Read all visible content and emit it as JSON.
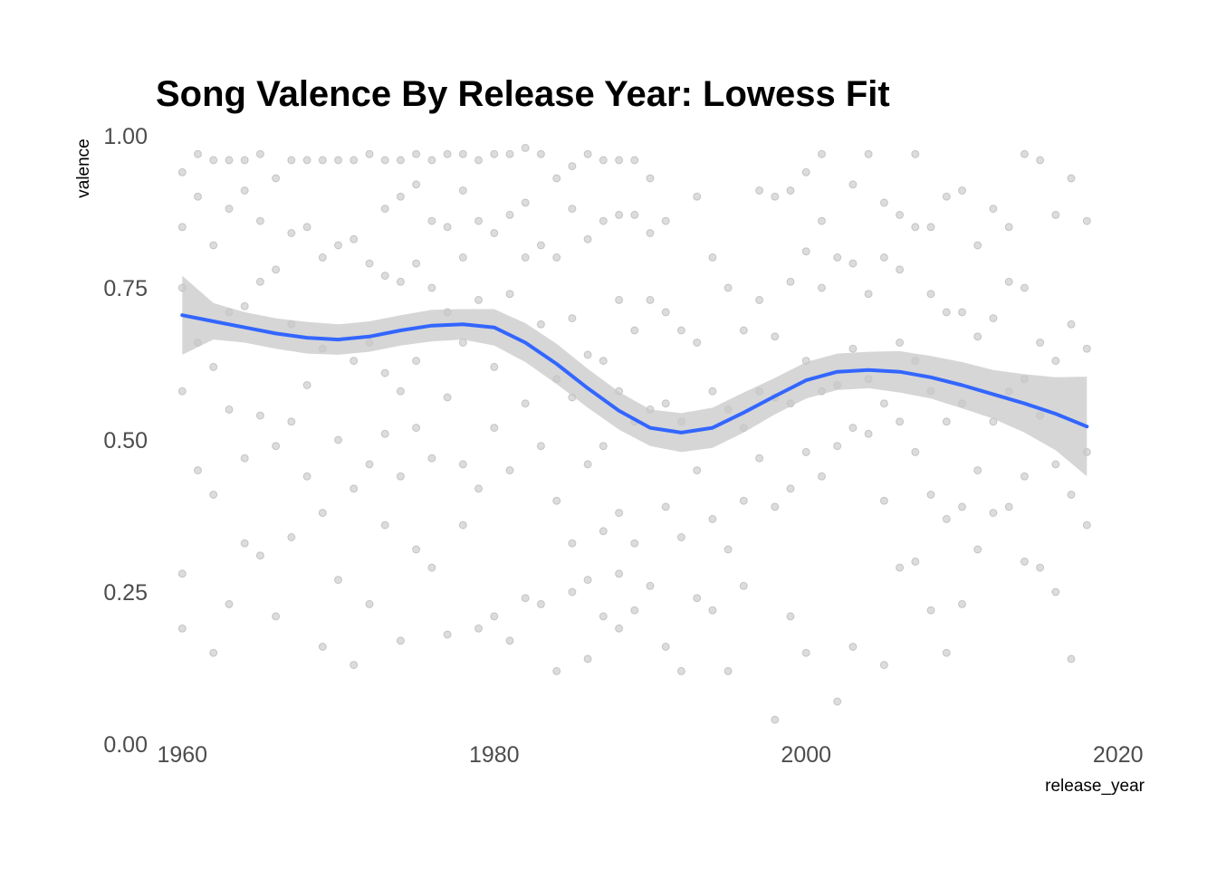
{
  "chart_data": {
    "type": "scatter",
    "title": "Song Valence By Release Year: Lowess Fit",
    "xlabel": "release_year",
    "ylabel": "valence",
    "xlim": [
      1958.3,
      2021.7
    ],
    "ylim": [
      0.0,
      1.0
    ],
    "x_ticks": [
      1960,
      1980,
      2000,
      2020
    ],
    "x_tick_labels": [
      "1960",
      "1980",
      "2000",
      "2020"
    ],
    "y_ticks": [
      0.0,
      0.25,
      0.5,
      0.75,
      1.0
    ],
    "y_tick_labels": [
      "0.00",
      "0.25",
      "0.50",
      "0.75",
      "1.00"
    ],
    "grid": false,
    "legend": "none",
    "colors": {
      "points": "#808080",
      "fit_line": "#3366ff",
      "ribbon": "#c8c8c8"
    },
    "series": [
      {
        "kind": "points",
        "x": [
          1960,
          1960,
          1960,
          1960,
          1960,
          1960,
          1961,
          1961,
          1961,
          1961,
          1962,
          1962,
          1962,
          1962,
          1962,
          1963,
          1963,
          1963,
          1963,
          1963,
          1964,
          1964,
          1964,
          1964,
          1964,
          1965,
          1965,
          1965,
          1965,
          1965,
          1966,
          1966,
          1966,
          1966,
          1967,
          1967,
          1967,
          1967,
          1967,
          1968,
          1968,
          1968,
          1968,
          1969,
          1969,
          1969,
          1969,
          1969,
          1970,
          1970,
          1970,
          1970,
          1971,
          1971,
          1971,
          1971,
          1971,
          1972,
          1972,
          1972,
          1972,
          1972,
          1973,
          1973,
          1973,
          1973,
          1973,
          1973,
          1974,
          1974,
          1974,
          1974,
          1974,
          1974,
          1975,
          1975,
          1975,
          1975,
          1975,
          1975,
          1976,
          1976,
          1976,
          1976,
          1976,
          1977,
          1977,
          1977,
          1977,
          1977,
          1978,
          1978,
          1978,
          1978,
          1978,
          1978,
          1979,
          1979,
          1979,
          1979,
          1979,
          1980,
          1980,
          1980,
          1980,
          1980,
          1981,
          1981,
          1981,
          1981,
          1981,
          1982,
          1982,
          1982,
          1982,
          1982,
          1983,
          1983,
          1983,
          1983,
          1983,
          1984,
          1984,
          1984,
          1984,
          1984,
          1985,
          1985,
          1985,
          1985,
          1985,
          1985,
          1986,
          1986,
          1986,
          1986,
          1986,
          1986,
          1987,
          1987,
          1987,
          1987,
          1987,
          1987,
          1988,
          1988,
          1988,
          1988,
          1988,
          1988,
          1988,
          1989,
          1989,
          1989,
          1989,
          1989,
          1989,
          1990,
          1990,
          1990,
          1990,
          1990,
          1991,
          1991,
          1991,
          1991,
          1991,
          1992,
          1992,
          1992,
          1992,
          1993,
          1993,
          1993,
          1993,
          1994,
          1994,
          1994,
          1994,
          1995,
          1995,
          1995,
          1995,
          1996,
          1996,
          1996,
          1996,
          1997,
          1997,
          1997,
          1997,
          1998,
          1998,
          1998,
          1998,
          1998,
          1999,
          1999,
          1999,
          1999,
          1999,
          2000,
          2000,
          2000,
          2000,
          2000,
          2001,
          2001,
          2001,
          2001,
          2001,
          2002,
          2002,
          2002,
          2002,
          2003,
          2003,
          2003,
          2003,
          2003,
          2004,
          2004,
          2004,
          2004,
          2005,
          2005,
          2005,
          2005,
          2005,
          2006,
          2006,
          2006,
          2006,
          2006,
          2007,
          2007,
          2007,
          2007,
          2007,
          2008,
          2008,
          2008,
          2008,
          2008,
          2009,
          2009,
          2009,
          2009,
          2009,
          2010,
          2010,
          2010,
          2010,
          2010,
          2011,
          2011,
          2011,
          2011,
          2012,
          2012,
          2012,
          2012,
          2013,
          2013,
          2013,
          2013,
          2014,
          2014,
          2014,
          2014,
          2014,
          2015,
          2015,
          2015,
          2015,
          2016,
          2016,
          2016,
          2016,
          2017,
          2017,
          2017,
          2017,
          2018,
          2018,
          2018,
          2018
        ],
        "y": [
          0.94,
          0.85,
          0.75,
          0.58,
          0.28,
          0.19,
          0.97,
          0.9,
          0.66,
          0.45,
          0.96,
          0.82,
          0.62,
          0.41,
          0.15,
          0.96,
          0.88,
          0.71,
          0.55,
          0.23,
          0.96,
          0.91,
          0.72,
          0.47,
          0.33,
          0.97,
          0.86,
          0.76,
          0.54,
          0.31,
          0.93,
          0.78,
          0.49,
          0.21,
          0.96,
          0.84,
          0.69,
          0.53,
          0.34,
          0.96,
          0.85,
          0.59,
          0.44,
          0.96,
          0.8,
          0.65,
          0.38,
          0.16,
          0.96,
          0.82,
          0.5,
          0.27,
          0.96,
          0.83,
          0.63,
          0.42,
          0.13,
          0.97,
          0.79,
          0.66,
          0.46,
          0.23,
          0.96,
          0.88,
          0.77,
          0.61,
          0.51,
          0.36,
          0.96,
          0.9,
          0.76,
          0.58,
          0.44,
          0.17,
          0.97,
          0.92,
          0.79,
          0.63,
          0.52,
          0.32,
          0.96,
          0.86,
          0.75,
          0.47,
          0.29,
          0.97,
          0.85,
          0.71,
          0.57,
          0.18,
          0.97,
          0.91,
          0.8,
          0.66,
          0.46,
          0.36,
          0.96,
          0.86,
          0.73,
          0.42,
          0.19,
          0.97,
          0.84,
          0.62,
          0.52,
          0.21,
          0.97,
          0.87,
          0.74,
          0.45,
          0.17,
          0.98,
          0.89,
          0.8,
          0.56,
          0.24,
          0.97,
          0.82,
          0.69,
          0.49,
          0.23,
          0.93,
          0.8,
          0.6,
          0.4,
          0.12,
          0.95,
          0.88,
          0.7,
          0.57,
          0.33,
          0.25,
          0.97,
          0.83,
          0.64,
          0.46,
          0.27,
          0.14,
          0.96,
          0.86,
          0.63,
          0.49,
          0.35,
          0.21,
          0.96,
          0.87,
          0.73,
          0.58,
          0.38,
          0.28,
          0.19,
          0.96,
          0.87,
          0.68,
          0.53,
          0.33,
          0.22,
          0.93,
          0.84,
          0.73,
          0.55,
          0.26,
          0.86,
          0.71,
          0.56,
          0.39,
          0.16,
          0.68,
          0.53,
          0.34,
          0.12,
          0.9,
          0.66,
          0.45,
          0.24,
          0.8,
          0.58,
          0.37,
          0.22,
          0.75,
          0.55,
          0.32,
          0.12,
          0.68,
          0.52,
          0.4,
          0.26,
          0.91,
          0.73,
          0.58,
          0.47,
          0.9,
          0.67,
          0.57,
          0.39,
          0.04,
          0.91,
          0.76,
          0.56,
          0.42,
          0.21,
          0.94,
          0.81,
          0.63,
          0.48,
          0.15,
          0.86,
          0.75,
          0.58,
          0.44,
          0.97,
          0.8,
          0.59,
          0.49,
          0.07,
          0.92,
          0.79,
          0.65,
          0.52,
          0.16,
          0.97,
          0.74,
          0.6,
          0.51,
          0.89,
          0.8,
          0.56,
          0.4,
          0.13,
          0.87,
          0.78,
          0.66,
          0.53,
          0.29,
          0.97,
          0.85,
          0.63,
          0.48,
          0.3,
          0.85,
          0.74,
          0.58,
          0.41,
          0.22,
          0.9,
          0.71,
          0.53,
          0.37,
          0.15,
          0.91,
          0.71,
          0.56,
          0.39,
          0.23,
          0.82,
          0.67,
          0.45,
          0.32,
          0.88,
          0.7,
          0.53,
          0.38,
          0.85,
          0.76,
          0.58,
          0.39,
          0.97,
          0.75,
          0.6,
          0.44,
          0.3,
          0.96,
          0.66,
          0.54,
          0.29,
          0.87,
          0.63,
          0.46,
          0.25,
          0.93,
          0.69,
          0.41,
          0.14,
          0.86,
          0.65,
          0.48,
          0.36
        ]
      },
      {
        "kind": "fit_line",
        "name": "lowess",
        "x": [
          1960,
          1962,
          1964,
          1966,
          1968,
          1970,
          1972,
          1974,
          1976,
          1978,
          1980,
          1982,
          1984,
          1986,
          1988,
          1990,
          1992,
          1994,
          1996,
          1998,
          2000,
          2002,
          2004,
          2006,
          2008,
          2010,
          2012,
          2014,
          2016,
          2018
        ],
        "y": [
          0.705,
          0.695,
          0.685,
          0.675,
          0.668,
          0.665,
          0.67,
          0.68,
          0.688,
          0.69,
          0.685,
          0.66,
          0.625,
          0.585,
          0.548,
          0.52,
          0.512,
          0.52,
          0.545,
          0.572,
          0.598,
          0.612,
          0.615,
          0.612,
          0.603,
          0.59,
          0.575,
          0.56,
          0.543,
          0.522
        ],
        "lower": [
          0.64,
          0.665,
          0.66,
          0.65,
          0.642,
          0.64,
          0.645,
          0.655,
          0.662,
          0.665,
          0.655,
          0.628,
          0.592,
          0.553,
          0.517,
          0.49,
          0.48,
          0.487,
          0.512,
          0.542,
          0.568,
          0.582,
          0.585,
          0.578,
          0.568,
          0.552,
          0.535,
          0.512,
          0.483,
          0.44
        ],
        "upper": [
          0.77,
          0.725,
          0.71,
          0.7,
          0.694,
          0.69,
          0.695,
          0.705,
          0.714,
          0.715,
          0.715,
          0.692,
          0.658,
          0.617,
          0.579,
          0.55,
          0.544,
          0.553,
          0.578,
          0.602,
          0.628,
          0.642,
          0.645,
          0.646,
          0.638,
          0.628,
          0.615,
          0.608,
          0.603,
          0.604
        ]
      }
    ]
  }
}
